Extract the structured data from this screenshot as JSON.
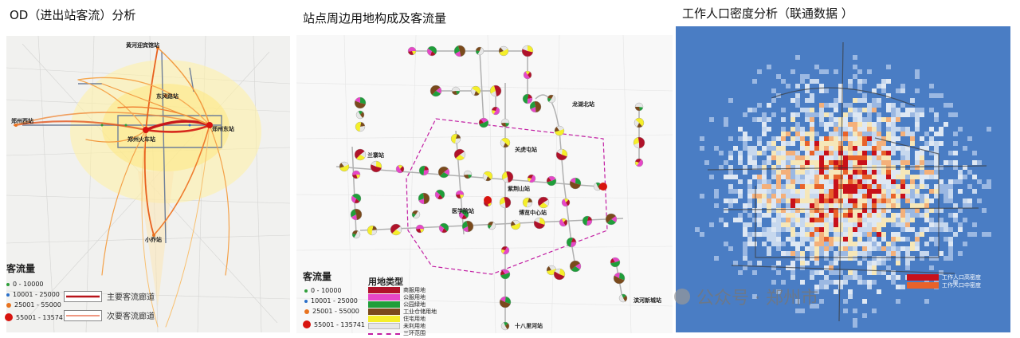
{
  "panel1": {
    "title": "OD（进出站客流）分析",
    "stations": [
      "黄河迎宾馆站",
      "东风路站",
      "郑州西站",
      "郑州东站",
      "郑州火车站",
      "小乔站"
    ],
    "legend": {
      "title": "客流量",
      "items": [
        {
          "label": "0 - 10000",
          "color": "#2e9e3a"
        },
        {
          "label": "10001 - 25000",
          "color": "#2a6fc9"
        },
        {
          "label": "25001 - 55000",
          "color": "#e8731f"
        },
        {
          "label": "55001 - 135741",
          "color": "#d8140f"
        }
      ],
      "main_corridor": "主要客流廊道",
      "secondary_corridor": "次要客流廊道"
    }
  },
  "panel2": {
    "title": "站点周边用地构成及客流量",
    "stations": [
      "龙湖北站",
      "兰寨站",
      "关虎屯站",
      "紫荆山站",
      "医学院站",
      "博览中心站",
      "滨河新城站",
      "十八里河站"
    ],
    "legend": {
      "title": "客流量",
      "items": [
        {
          "label": "0 - 10000",
          "color": "#2e9e3a"
        },
        {
          "label": "10001 - 25000",
          "color": "#2a6fc9"
        },
        {
          "label": "25001 - 55000",
          "color": "#e8731f"
        },
        {
          "label": "55001 - 135741",
          "color": "#d8140f"
        }
      ]
    },
    "landuse": {
      "title": "用地类型",
      "items": [
        {
          "label": "商服用地",
          "color": "#b0122a"
        },
        {
          "label": "公服用地",
          "color": "#e646c8"
        },
        {
          "label": "公园绿地",
          "color": "#1f9e3a"
        },
        {
          "label": "工业仓储用地",
          "color": "#7a4a1c"
        },
        {
          "label": "住宅用地",
          "color": "#f5ef2a"
        },
        {
          "label": "未利用地",
          "color": "#e6e6e6"
        },
        {
          "label": "三环范围",
          "color": "#c21fa3"
        }
      ]
    }
  },
  "panel3": {
    "title": "工作人口密度分析（联通数据 ）",
    "legend": [
      {
        "label": "工作人口高密度",
        "color": "#c8111a"
      },
      {
        "label": "工作人口中密度",
        "color": "#e8622a"
      }
    ]
  },
  "watermark": "公众号 · 郑州市"
}
